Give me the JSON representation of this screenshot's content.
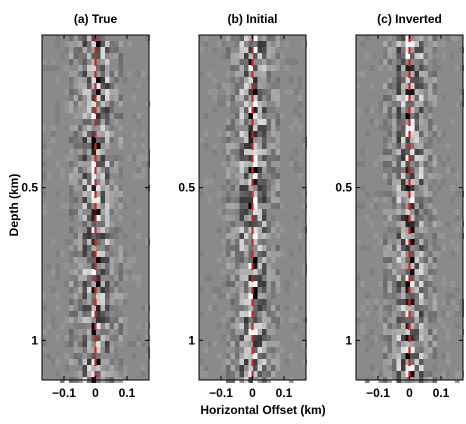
{
  "figure": {
    "xlabel": "Horizontal Offset (km)",
    "ylabel": "Depth (km)"
  },
  "colors": {
    "background_gray": "#8a8a8a",
    "trace_line": "#e21b1b",
    "axis": "#000000"
  },
  "chart_data": [
    {
      "type": "heatmap",
      "title": "(a) True",
      "xlim": [
        -0.17,
        0.17
      ],
      "ylim": [
        0.0,
        1.13
      ],
      "x_reverse": false,
      "y_reverse": true,
      "xticks": [
        -0.1,
        0,
        0.1
      ],
      "xtick_labels": [
        "−0.1",
        "0",
        "0.1"
      ],
      "yticks": [
        0.5,
        1
      ],
      "ytick_labels": [
        "0.5",
        "1"
      ],
      "reference_line": {
        "x": 0,
        "style": "dashed",
        "color": "#e21b1b"
      },
      "seed": 11
    },
    {
      "type": "heatmap",
      "title": "(b) Initial",
      "xlim": [
        -0.17,
        0.17
      ],
      "ylim": [
        0.0,
        1.13
      ],
      "y_reverse": true,
      "xticks": [
        -0.1,
        0,
        0.1
      ],
      "xtick_labels": [
        "−0.1",
        "0",
        "0.1"
      ],
      "yticks": [
        0.5,
        1
      ],
      "ytick_labels": [
        "0.5",
        "1"
      ],
      "reference_line": {
        "x": 0,
        "style": "dashed",
        "color": "#e21b1b"
      },
      "seed": 29
    },
    {
      "type": "heatmap",
      "title": "(c) Inverted",
      "xlim": [
        -0.17,
        0.17
      ],
      "ylim": [
        0.0,
        1.13
      ],
      "y_reverse": true,
      "xticks": [
        -0.1,
        0,
        0.1
      ],
      "xtick_labels": [
        "−0.1",
        "0",
        "0.1"
      ],
      "yticks": [
        0.5,
        1
      ],
      "ytick_labels": [
        "0.5",
        "1"
      ],
      "reference_line": {
        "x": 0,
        "style": "dashed",
        "color": "#e21b1b"
      },
      "seed": 47
    }
  ]
}
